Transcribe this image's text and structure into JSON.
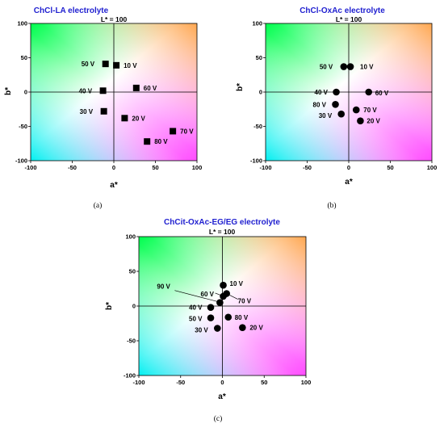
{
  "colors": {
    "title": "#1f1fd0",
    "marker": "#000000",
    "field_bottom_left": "#00f0f0",
    "field_top_left": "#00ff4e",
    "field_top_right": "#ffa64d",
    "field_bottom_right": "#ff4dff",
    "field_center": "#ffffff"
  },
  "chart_data": [
    {
      "type": "scatter",
      "panel": "a",
      "caption": "(a)",
      "title": "ChCl-LA electrolyte",
      "lightness_label": "L* = 100",
      "xlabel": "a*",
      "ylabel": "b*",
      "xlim": [
        -100,
        100
      ],
      "ylim": [
        -100,
        100
      ],
      "xticks": [
        -100,
        -50,
        0,
        50,
        100
      ],
      "yticks": [
        -100,
        -50,
        0,
        50,
        100
      ],
      "x_tick_labels": [
        "-100",
        "-50",
        "0",
        "50",
        "100"
      ],
      "y_tick_labels": [
        "-100",
        "-50",
        "0",
        "50",
        "100"
      ],
      "marker": "square",
      "grid": false,
      "points": [
        {
          "label": "10 V",
          "a": 3,
          "b": 39
        },
        {
          "label": "50 V",
          "a": -10,
          "b": 41
        },
        {
          "label": "40 V",
          "a": -13,
          "b": 2
        },
        {
          "label": "60 V",
          "a": 27,
          "b": 6
        },
        {
          "label": "30 V",
          "a": -12,
          "b": -28
        },
        {
          "label": "20 V",
          "a": 13,
          "b": -38
        },
        {
          "label": "70 V",
          "a": 71,
          "b": -57
        },
        {
          "label": "80 V",
          "a": 40,
          "b": -72
        }
      ]
    },
    {
      "type": "scatter",
      "panel": "b",
      "caption": "(b)",
      "title": "ChCl-OxAc electrolyte",
      "lightness_label": "L* = 100",
      "xlabel": "a*",
      "ylabel": "b*",
      "xlim": [
        -100,
        100
      ],
      "ylim": [
        -100,
        100
      ],
      "xticks": [
        -100,
        -50,
        0,
        50,
        100
      ],
      "yticks": [
        -100,
        -50,
        0,
        50,
        100
      ],
      "x_tick_labels": [
        "-100",
        "-50",
        "0",
        "50",
        "100"
      ],
      "y_tick_labels": [
        "-100",
        "-50",
        "0",
        "50",
        "100"
      ],
      "marker": "circle",
      "grid": false,
      "points": [
        {
          "label": "50 V",
          "a": -6,
          "b": 37
        },
        {
          "label": "10 V",
          "a": 2,
          "b": 37
        },
        {
          "label": "40 V",
          "a": -15,
          "b": 0
        },
        {
          "label": "60 V",
          "a": 24,
          "b": 0
        },
        {
          "label": "80 V",
          "a": -16,
          "b": -18
        },
        {
          "label": "70 V",
          "a": 9,
          "b": -26
        },
        {
          "label": "30 V",
          "a": -9,
          "b": -32
        },
        {
          "label": "20 V",
          "a": 14,
          "b": -42
        }
      ]
    },
    {
      "type": "scatter",
      "panel": "c",
      "caption": "(c)",
      "title": "ChCit-OxAc-EG/EG electrolyte",
      "lightness_label": "L* = 100",
      "xlabel": "a*",
      "ylabel": "b*",
      "xlim": [
        -100,
        100
      ],
      "ylim": [
        -100,
        100
      ],
      "xticks": [
        -100,
        -50,
        0,
        50,
        100
      ],
      "yticks": [
        -100,
        -50,
        0,
        50,
        100
      ],
      "x_tick_labels": [
        "-100",
        "-50",
        "0",
        "50",
        "100"
      ],
      "y_tick_labels": [
        "-100",
        "-50",
        "0",
        "50",
        "100"
      ],
      "marker": "circle",
      "grid": false,
      "points": [
        {
          "label": "10 V",
          "a": 1,
          "b": 30
        },
        {
          "label": "60 V",
          "a": 1,
          "b": 14
        },
        {
          "label": "70 V",
          "a": 5,
          "b": 18
        },
        {
          "label": "90 V",
          "a": -3,
          "b": 5
        },
        {
          "label": "40 V",
          "a": -14,
          "b": -2
        },
        {
          "label": "50 V",
          "a": -14,
          "b": -17
        },
        {
          "label": "80 V",
          "a": 7,
          "b": -16
        },
        {
          "label": "30 V",
          "a": -6,
          "b": -32
        },
        {
          "label": "20 V",
          "a": 24,
          "b": -31
        }
      ]
    }
  ]
}
